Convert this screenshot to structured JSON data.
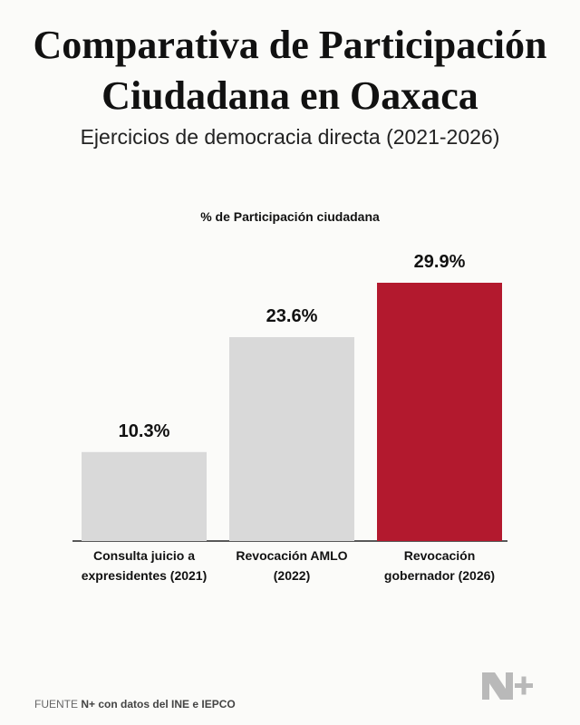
{
  "chart_data": {
    "type": "bar",
    "title": "Comparativa de Participación Ciudadana en Oaxaca",
    "subtitle": "Ejercicios de democracia directa (2021-2026)",
    "y_label": "% de Participación ciudadana",
    "categories": [
      "Consulta juicio a expresidentes (2021)",
      "Revocación AMLO (2022)",
      "Revocación gobernador (2026)"
    ],
    "values": [
      10.3,
      23.6,
      29.9
    ],
    "value_labels": [
      "10.3%",
      "23.6%",
      "29.9%"
    ],
    "colors": [
      "#d9d9d9",
      "#d9d9d9",
      "#b3192e"
    ],
    "source_label": "FUENTE",
    "source": "N+ con datos del INE e IEPCO"
  }
}
